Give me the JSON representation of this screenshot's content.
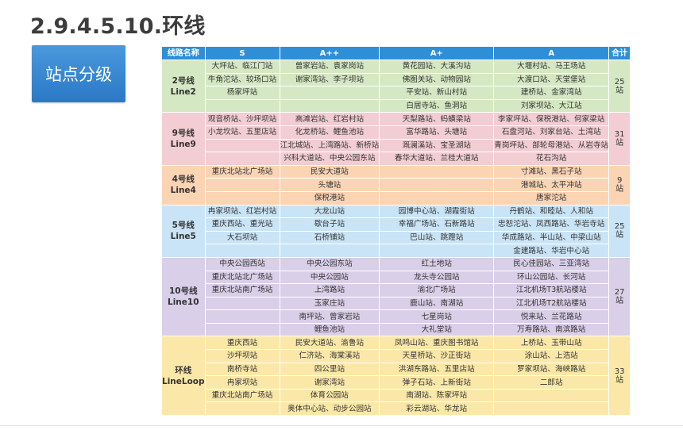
{
  "title": "2.9.4.5.10.环线",
  "category_button": "站点分级",
  "table": {
    "headers": [
      "线路名称",
      "S",
      "A++",
      "A+",
      "A",
      "合计"
    ],
    "lines": [
      {
        "name_cn": "2号线",
        "name_en": "Line2",
        "total": "25",
        "unit": "站",
        "color": "#d5e8c4",
        "rows": [
          [
            "大坪站、临江门站",
            "曾家岩站、袁家岗站",
            "黄花园站、大溪沟站",
            "大堰村站、马王场站"
          ],
          [
            "牛角沱站、较场口站",
            "谢家湾站、李子坝站",
            "佛图关站、动物园站",
            "大渡口站、天堂堡站"
          ],
          [
            "杨家坪站",
            "",
            "平安站、新山村站",
            "建桥站、金家湾站"
          ],
          [
            "",
            "",
            "白居寺站、鱼洞站",
            "刘家坝站、大江站"
          ]
        ]
      },
      {
        "name_cn": "9号线",
        "name_en": "Line9",
        "total": "31",
        "unit": "站",
        "color": "#f2cdd3",
        "rows": [
          [
            "观音桥站、沙坪坝站",
            "高滩岩站、红岩村站",
            "天梨路站、蚂蟥梁站",
            "李家坪站、保税港站、何家梁站"
          ],
          [
            "小龙坎站、五里店站",
            "化龙桥站、鲤鱼池站",
            "富华路站、头塘站",
            "石盘河站、刘家台站、土湾站"
          ],
          [
            "",
            "江北城站、上湾路站、新桥站",
            "溉澜溪站、宝圣湖站",
            "青岗坪站、部轮母港站、从岩寺站"
          ],
          [
            "",
            "兴科大道站、中央公园东站",
            "春华大道站、兰桂大道站",
            "花石沟站"
          ]
        ]
      },
      {
        "name_cn": "4号线",
        "name_en": "Line4",
        "total": "9",
        "unit": "站",
        "color": "#fbd4b4",
        "rows": [
          [
            "重庆北站北广场站",
            "民安大道站",
            "",
            "寸滩站、黑石子站"
          ],
          [
            "",
            "头塘站",
            "",
            "港城站、太平冲站"
          ],
          [
            "",
            "保税港站",
            "",
            "唐家沱站"
          ]
        ]
      },
      {
        "name_cn": "5号线",
        "name_en": "Line5",
        "total": "25",
        "unit": "站",
        "color": "#c9e4f6",
        "rows": [
          [
            "冉家坝站、红岩村站",
            "大龙山站",
            "园博中心站、湖霞街站",
            "丹鹤站、和睦站、人和站"
          ],
          [
            "重庆西站、重光站",
            "歇台子站",
            "幸福广场站、石新路站",
            "忠恕沱站、凤西路站、华岩寺站"
          ],
          [
            "大石坝站",
            "石桥铺站",
            "巴山站、跳蹬站",
            "华成路站、半山站、中梁山站"
          ],
          [
            "",
            "",
            "",
            "金建路站、华岩中心站"
          ]
        ]
      },
      {
        "name_cn": "10号线",
        "name_en": "Line10",
        "total": "27",
        "unit": "站",
        "color": "#d9cfe8",
        "rows": [
          [
            "中央公园西站",
            "中央公园东站",
            "红土地站",
            "民心佳园站、三亚湾站"
          ],
          [
            "重庆北站北广场站",
            "中央公园站",
            "龙头寺公园站",
            "环山公园站、长河站"
          ],
          [
            "重庆北站南广场站",
            "上湾路站",
            "渝北广场站",
            "江北机场T3航站楼站"
          ],
          [
            "",
            "玉家庄站",
            "鹿山站、南湖站",
            "江北机场T2航站楼站"
          ],
          [
            "",
            "南坪站、曾家岩站",
            "七星岗站",
            "悦来站、兰花路站"
          ],
          [
            "",
            "鲤鱼池站",
            "大礼堂站",
            "万寿路站、南滨路站"
          ]
        ]
      },
      {
        "name_cn": "环线",
        "name_en": "LineLoop",
        "total": "33",
        "unit": "站",
        "color": "#fbe8a8",
        "rows": [
          [
            "重庆西站",
            "民安大道站、渝鲁站",
            "凤鸣山站、重庆图书馆站",
            "上桥站、玉带山站"
          ],
          [
            "沙坪坝站",
            "仁济站、海棠溪站",
            "天星桥站、沙正街站",
            "涂山站、上浩站"
          ],
          [
            "南桥寺站",
            "四公里站",
            "洪湖东路站、五里店站",
            "罗家坝站、海峡路站"
          ],
          [
            "冉家坝站",
            "谢家湾站",
            "弹子石站、上新街站",
            "二郎站"
          ],
          [
            "重庆北站南广场站",
            "体育公园站",
            "南湖站、陈家坪站",
            ""
          ],
          [
            "",
            "奥体中心站、动步公园站",
            "彩云湖站、华龙站",
            ""
          ]
        ]
      }
    ]
  }
}
